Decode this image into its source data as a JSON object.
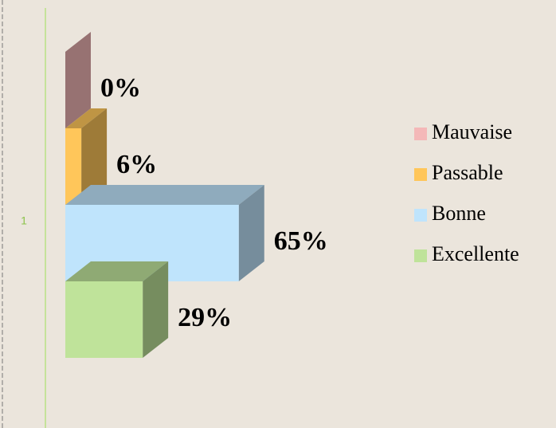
{
  "chart_data": {
    "type": "bar3d_horizontal",
    "categories": [
      "1"
    ],
    "series": [
      {
        "name": "Mauvaise",
        "color": "#f4b8b8",
        "values": [
          0
        ],
        "value_labels": [
          "0%"
        ]
      },
      {
        "name": "Passable",
        "color": "#ffc65a",
        "values": [
          6
        ],
        "value_labels": [
          "6%"
        ]
      },
      {
        "name": "Bonne",
        "color": "#bfe4fc",
        "values": [
          65
        ],
        "value_labels": [
          "65%"
        ]
      },
      {
        "name": "Excellente",
        "color": "#bfe39a",
        "values": [
          29
        ],
        "value_labels": [
          "29%"
        ]
      }
    ]
  }
}
